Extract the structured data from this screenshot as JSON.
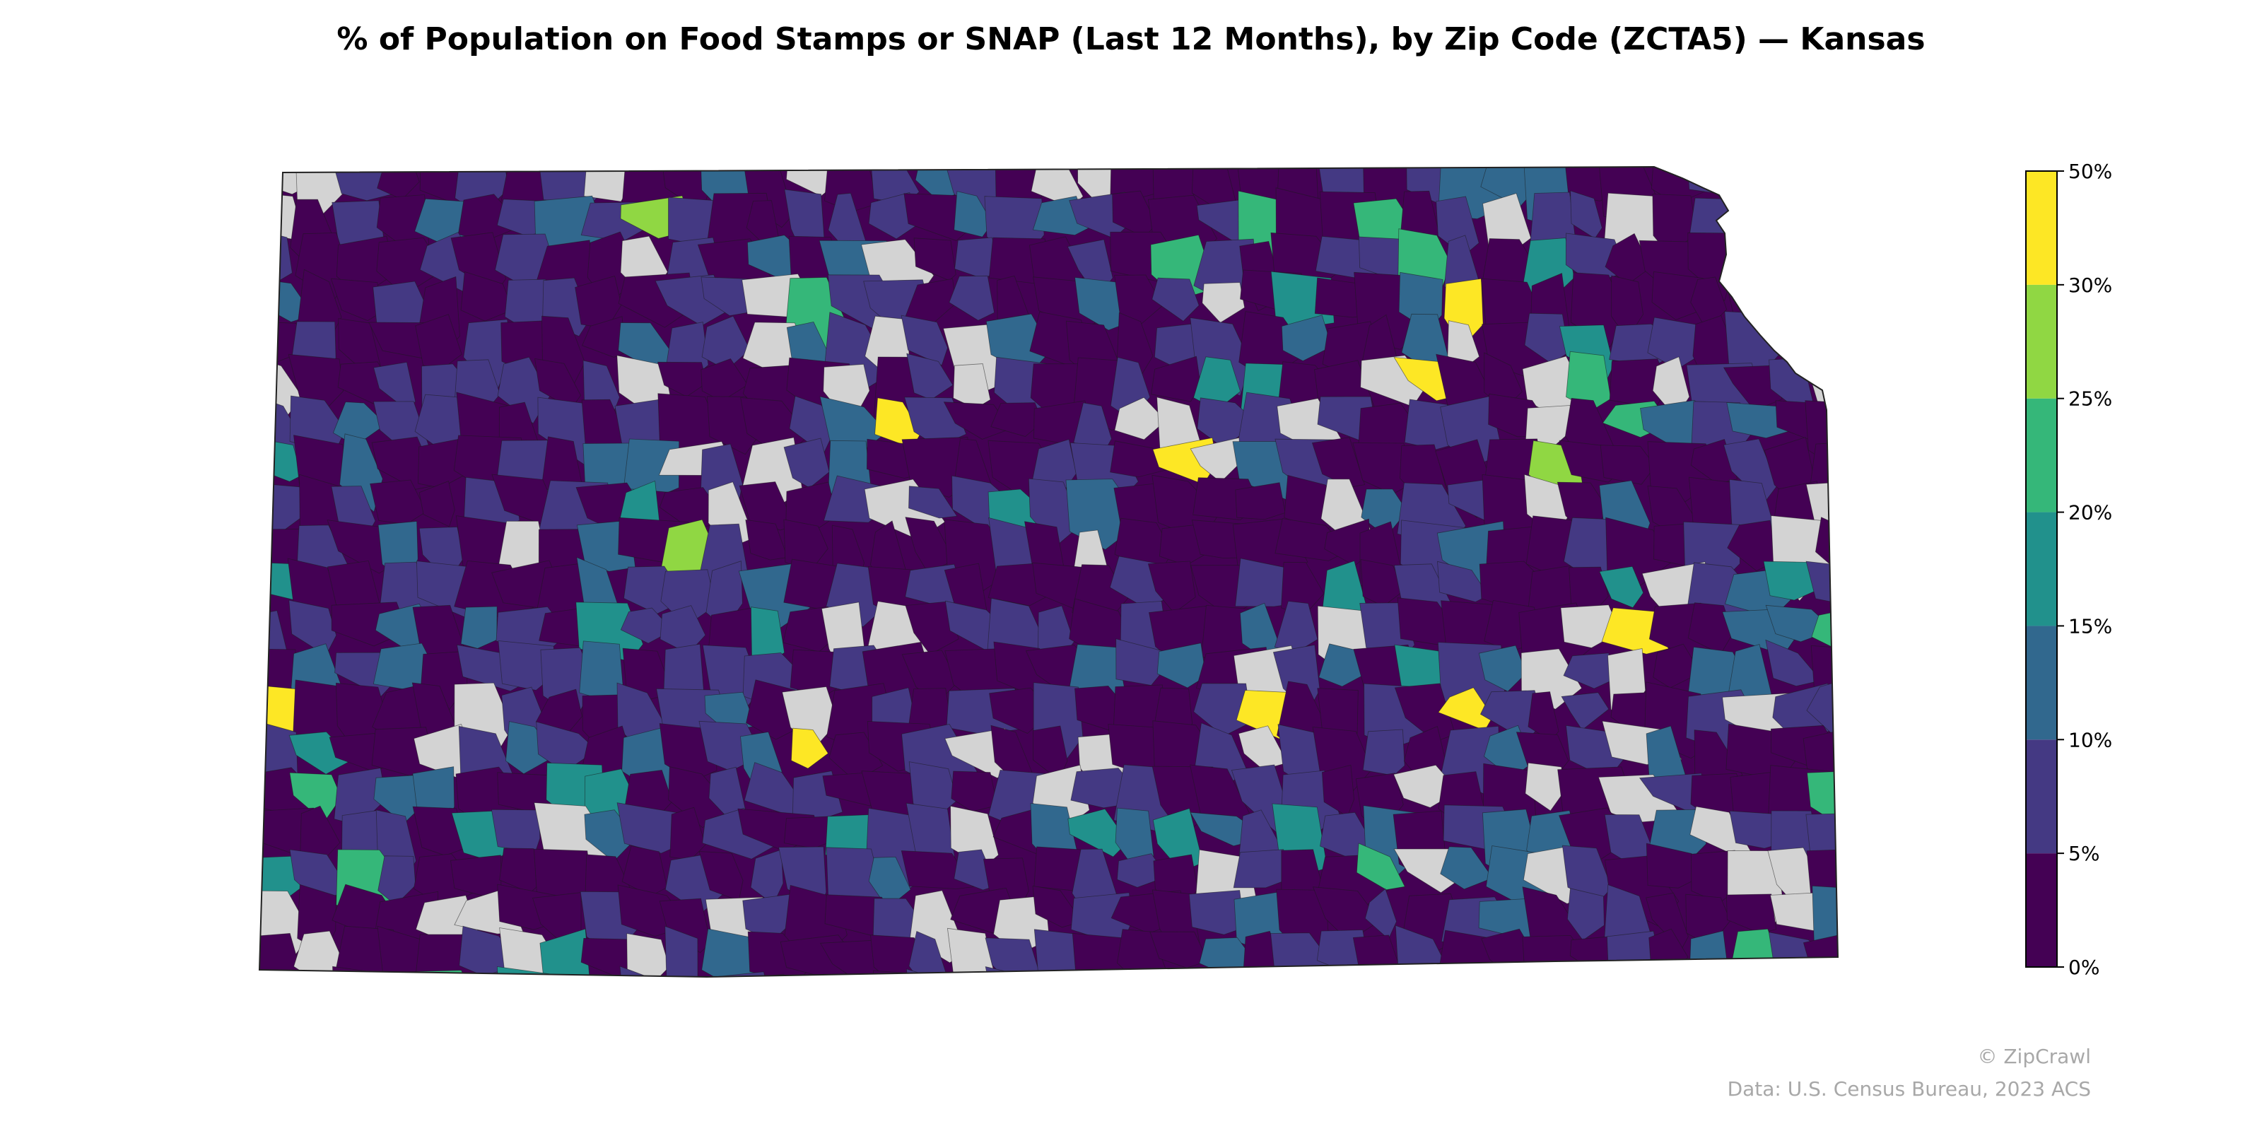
{
  "title": "% of Population on Food Stamps or SNAP (Last 12 Months), by Zip Code (ZCTA5) — Kansas",
  "credit": "© ZipCrawl",
  "source": "Data: U.S. Census Bureau, 2023 ACS",
  "chart_data": {
    "type": "choropleth",
    "region": "Kansas",
    "unit": "%",
    "bins": [
      {
        "from": 0,
        "to": 5,
        "label": "0%",
        "color": "#440154"
      },
      {
        "from": 5,
        "to": 10,
        "label": "5%",
        "color": "#443983"
      },
      {
        "from": 10,
        "to": 15,
        "label": "10%",
        "color": "#31688e"
      },
      {
        "from": 15,
        "to": 20,
        "label": "15%",
        "color": "#21918c"
      },
      {
        "from": 20,
        "to": 25,
        "label": "20%",
        "color": "#35b779"
      },
      {
        "from": 25,
        "to": 30,
        "label": "25%",
        "color": "#90d743"
      },
      {
        "from": 30,
        "to": 50,
        "label": "30%",
        "color": "#fde725"
      }
    ],
    "top_label": "50%",
    "no_data_color": "#d3d3d3"
  }
}
